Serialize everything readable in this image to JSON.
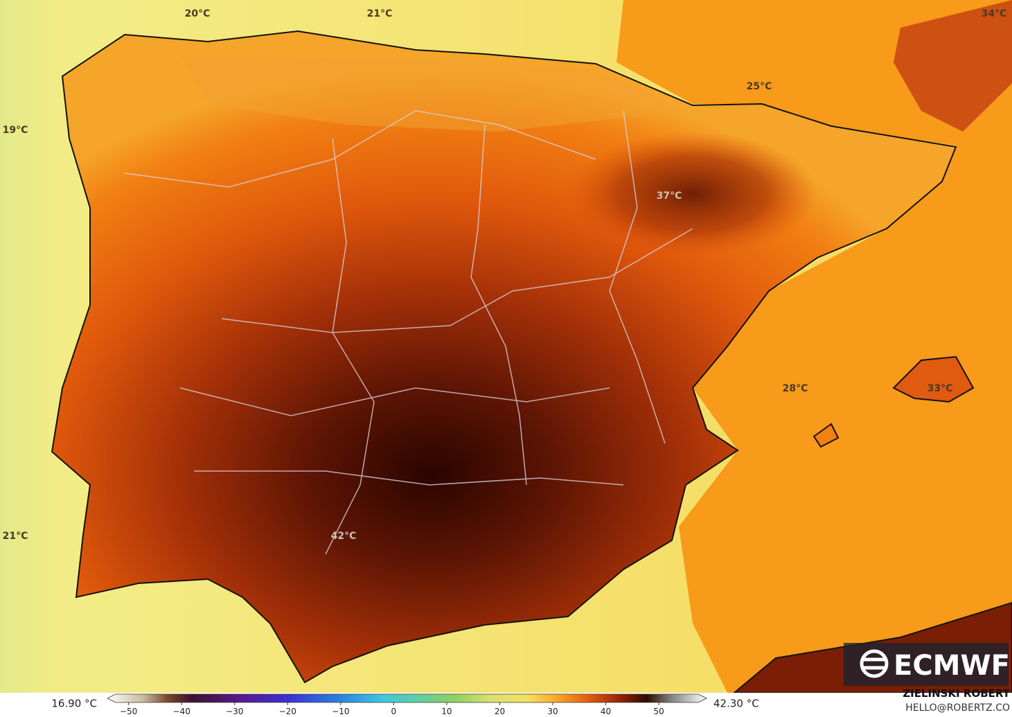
{
  "logo": "ECMWF",
  "map_labels": [
    "20°C",
    "21°C",
    "34°C",
    "19°C",
    "25°C",
    "37°C",
    "28°C",
    "33°C",
    "21°C",
    "42°C"
  ],
  "colorbar": {
    "min_label": "16.90 °C",
    "max_label": "42.30 °C",
    "lim": [
      -54,
      59
    ],
    "ticks": [
      {
        "value": -50,
        "label": "−50"
      },
      {
        "value": -40,
        "label": "−40"
      },
      {
        "value": -30,
        "label": "−30"
      },
      {
        "value": -20,
        "label": "−20"
      },
      {
        "value": -10,
        "label": "−10"
      },
      0,
      10,
      20,
      30,
      40,
      50
    ]
  },
  "credits": {
    "author": "ZIELIŃSKI ROBERT",
    "email": "HELLO@ROBERTZ.CO"
  }
}
